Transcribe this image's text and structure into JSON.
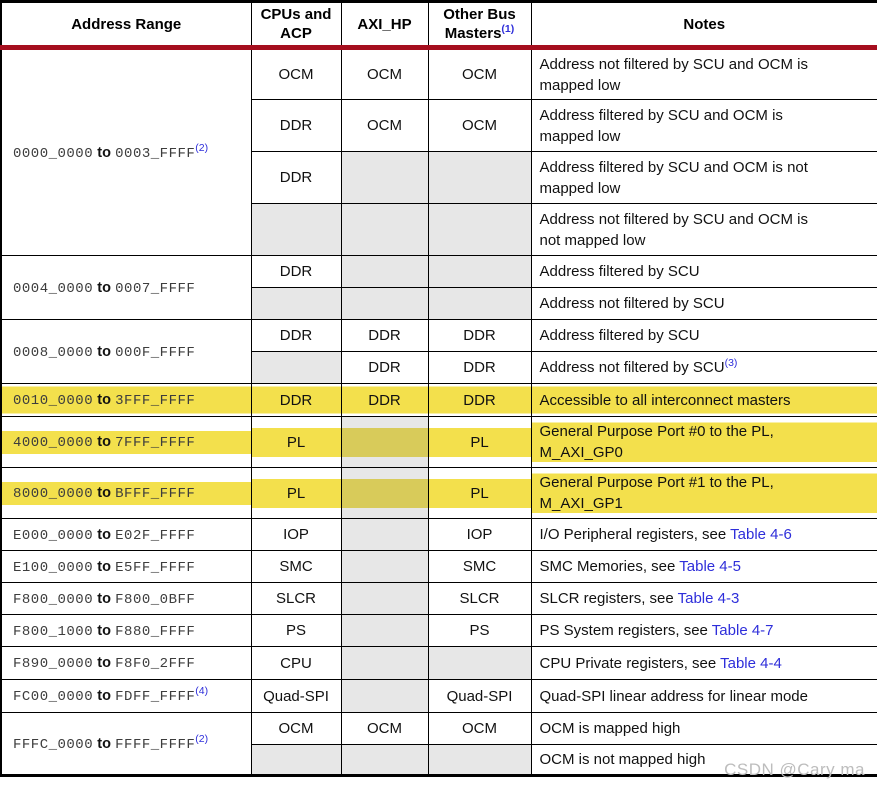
{
  "watermark": "CSDN @Cary ma",
  "colors": {
    "highlight_yellow": "#f3e04c",
    "highlight_over_gray": "#d8cb5a",
    "cell_shade_gray": "#e7e7e7",
    "header_rule_red": "#a50e1e",
    "link_blue": "#2e2eda"
  },
  "header": {
    "address_range": "Address Range",
    "cpus_acp": "CPUs and ACP",
    "axi_hp": "AXI_HP",
    "other_bus": "Other Bus Masters",
    "other_bus_sup": "(1)",
    "notes": "Notes"
  },
  "groups": [
    {
      "address": {
        "start": "0000_0000",
        "to": "to",
        "end": "0003_FFFF",
        "sup": "(2)"
      },
      "rows": [
        {
          "cpu": "OCM",
          "axi": "OCM",
          "other": "OCM",
          "note": "Address not filtered by SCU and OCM is\nmapped low"
        },
        {
          "cpu": "DDR",
          "axi": "OCM",
          "other": "OCM",
          "note": "Address filtered by SCU and OCM is\nmapped low"
        },
        {
          "cpu": "DDR",
          "axi": "",
          "other": "",
          "note": "Address filtered by SCU and OCM is not\nmapped low"
        },
        {
          "cpu": "",
          "axi": "",
          "other": "",
          "note": "Address not filtered by SCU and OCM is\nnot mapped low"
        }
      ]
    },
    {
      "address": {
        "start": "0004_0000",
        "to": "to",
        "end": "0007_FFFF"
      },
      "rows": [
        {
          "cpu": "DDR",
          "axi": "",
          "other": "",
          "note": "Address filtered by SCU"
        },
        {
          "cpu": "",
          "axi": "",
          "other": "",
          "note": "Address not filtered by SCU"
        }
      ]
    },
    {
      "address": {
        "start": "0008_0000",
        "to": "to",
        "end": "000F_FFFF"
      },
      "rows": [
        {
          "cpu": "DDR",
          "axi": "DDR",
          "other": "DDR",
          "note": "Address filtered by SCU"
        },
        {
          "cpu": "",
          "axi": "DDR",
          "other": "DDR",
          "note": "Address not filtered by SCU",
          "note_sup": "(3)"
        }
      ]
    },
    {
      "address": {
        "start": "0010_0000",
        "to": "to",
        "end": "3FFF_FFFF"
      },
      "rows": [
        {
          "cpu": "DDR",
          "axi": "DDR",
          "other": "DDR",
          "note": "Accessible to all interconnect masters"
        }
      ]
    },
    {
      "address": {
        "start": "4000_0000",
        "to": "to",
        "end": "7FFF_FFFF"
      },
      "rows": [
        {
          "cpu": "PL",
          "axi": "",
          "other": "PL",
          "note": "General Purpose Port #0 to the PL,\nM_AXI_GP0"
        }
      ]
    },
    {
      "address": {
        "start": "8000_0000",
        "to": "to",
        "end": "BFFF_FFFF"
      },
      "rows": [
        {
          "cpu": "PL",
          "axi": "",
          "other": "PL",
          "note": "General Purpose Port #1 to the PL,\nM_AXI_GP1"
        }
      ]
    },
    {
      "address": {
        "start": "E000_0000",
        "to": "to",
        "end": "E02F_FFFF"
      },
      "rows": [
        {
          "cpu": "IOP",
          "axi": "",
          "other": "IOP",
          "note": "I/O Peripheral registers, see ",
          "link": "Table 4-6"
        }
      ]
    },
    {
      "address": {
        "start": "E100_0000",
        "to": "to",
        "end": "E5FF_FFFF"
      },
      "rows": [
        {
          "cpu": "SMC",
          "axi": "",
          "other": "SMC",
          "note": "SMC Memories, see ",
          "link": "Table 4-5"
        }
      ]
    },
    {
      "address": {
        "start": "F800_0000",
        "to": "to",
        "end": "F800_0BFF"
      },
      "rows": [
        {
          "cpu": "SLCR",
          "axi": "",
          "other": "SLCR",
          "note": "SLCR registers, see ",
          "link": "Table 4-3"
        }
      ]
    },
    {
      "address": {
        "start": "F800_1000",
        "to": "to",
        "end": "F880_FFFF"
      },
      "rows": [
        {
          "cpu": "PS",
          "axi": "",
          "other": "PS",
          "note": "PS System registers, see ",
          "link": "Table 4-7"
        }
      ]
    },
    {
      "address": {
        "start": "F890_0000",
        "to": "to",
        "end": "F8F0_2FFF"
      },
      "rows": [
        {
          "cpu": "CPU",
          "axi": "",
          "other": "",
          "note": "CPU Private registers, see ",
          "link": "Table 4-4"
        }
      ]
    },
    {
      "address": {
        "start": "FC00_0000",
        "to": "to",
        "end": "FDFF_FFFF",
        "sup": "(4)"
      },
      "rows": [
        {
          "cpu": "Quad-SPI",
          "axi": "",
          "other": "Quad-SPI",
          "note": "Quad-SPI linear address for linear mode"
        }
      ]
    },
    {
      "address": {
        "start": "FFFC_0000",
        "to": "to",
        "end": "FFFF_FFFF",
        "sup": "(2)"
      },
      "rows": [
        {
          "cpu": "OCM",
          "axi": "OCM",
          "other": "OCM",
          "note": "OCM is mapped high"
        },
        {
          "cpu": "",
          "axi": "",
          "other": "",
          "note": "OCM is not mapped high"
        }
      ]
    }
  ]
}
